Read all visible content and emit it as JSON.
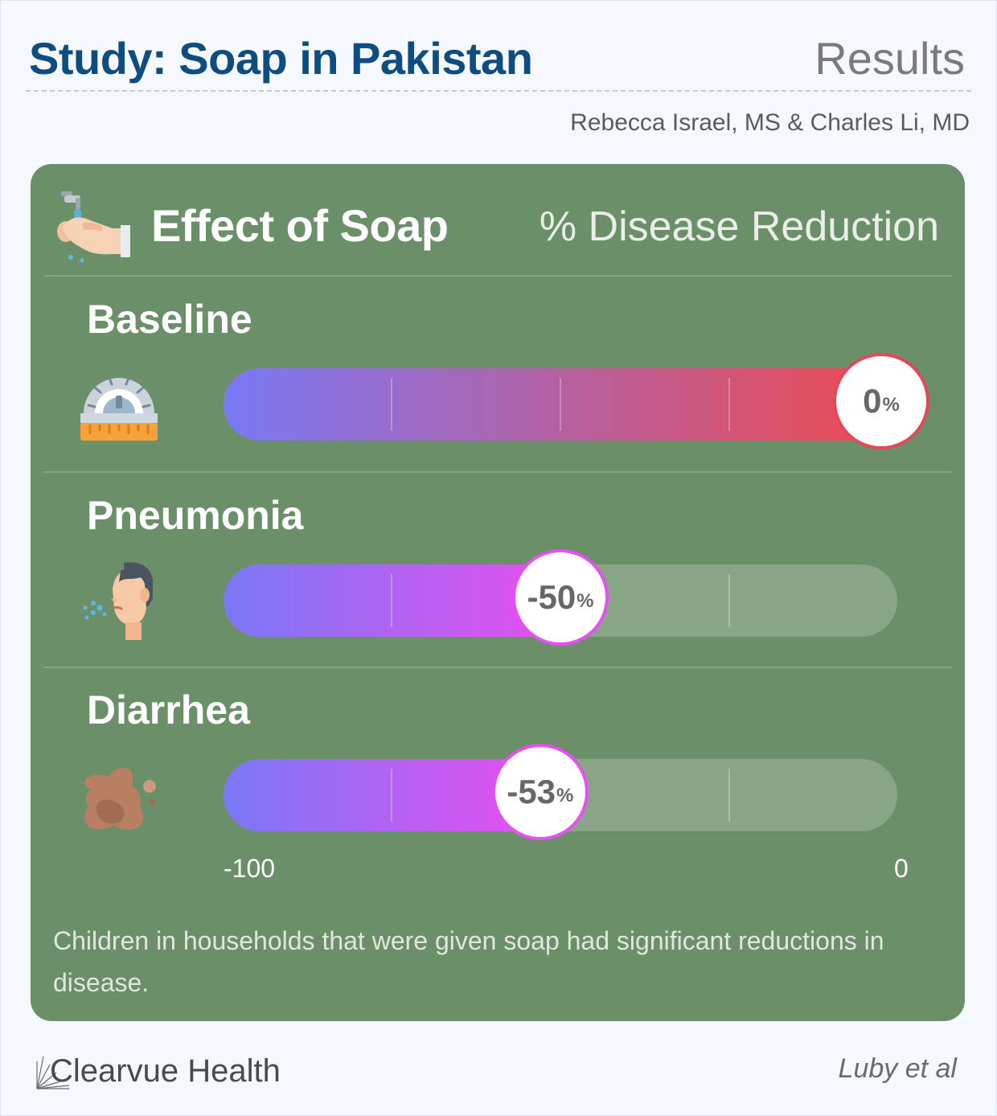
{
  "header": {
    "title": "Study: Soap in Pakistan",
    "section": "Results",
    "authors": "Rebecca Israel, MS & Charles Li, MD"
  },
  "card": {
    "title": "Effect of Soap",
    "subtitle": "% Disease Reduction",
    "icon": "handwashing-icon",
    "note": "Children in households that were given soap had significant reductions in disease."
  },
  "chart_data": {
    "type": "bar",
    "orientation": "horizontal",
    "categories": [
      "Baseline",
      "Pneumonia",
      "Diarrhea"
    ],
    "values": [
      0,
      -50,
      -53
    ],
    "value_labels": [
      "0",
      "-50",
      "-53"
    ],
    "unit": "%",
    "xlim": [
      -100,
      0
    ],
    "tick_labels": [
      "-100",
      "0"
    ],
    "icons": [
      "gauge-icon",
      "coughing-person-icon",
      "diarrhea-stain-icon"
    ],
    "colors": {
      "gradient_start": "#7a78f5",
      "baseline_end": "#ef4a4e",
      "reduction_end": "#e64ff0",
      "baseline_marker": "#e24a5a",
      "reduction_marker": "#e64ff0",
      "track": "#88a686"
    }
  },
  "footer": {
    "brand": "Clearvue Health",
    "source": "Luby et al"
  }
}
